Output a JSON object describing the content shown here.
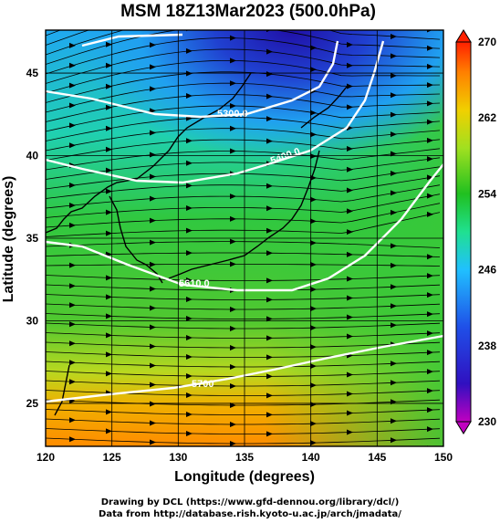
{
  "title": "MSM 18Z13Mar2023 (500.0hPa)",
  "axes": {
    "xlabel": "Longitude (degrees)",
    "ylabel": "Latitude  (degrees)",
    "xlim": [
      120,
      150
    ],
    "ylim": [
      22.4,
      47.6
    ],
    "xticks": [
      "120",
      "125",
      "130",
      "135",
      "140",
      "145",
      "150"
    ],
    "yticks": [
      "25",
      "30",
      "35",
      "40",
      "45"
    ]
  },
  "colorbar": {
    "min": 230,
    "max": 270,
    "ticks": [
      "270",
      "262",
      "254",
      "246",
      "238",
      "230"
    ]
  },
  "contours": [
    {
      "label": "5300.0"
    },
    {
      "label": "5400.0"
    },
    {
      "label": "5610.0"
    },
    {
      "label": "5700"
    }
  ],
  "credits": {
    "line1": "Drawing by DCL (https://www.gfd-dennou.org/library/dcl/)",
    "line2": "Data from http://database.rish.kyoto-u.ac.jp/arch/jmadata/"
  },
  "colors": {
    "cold": "#1f3fbf",
    "warm": "#ff9a00",
    "contour": "#ffffff",
    "coast": "#000000"
  }
}
